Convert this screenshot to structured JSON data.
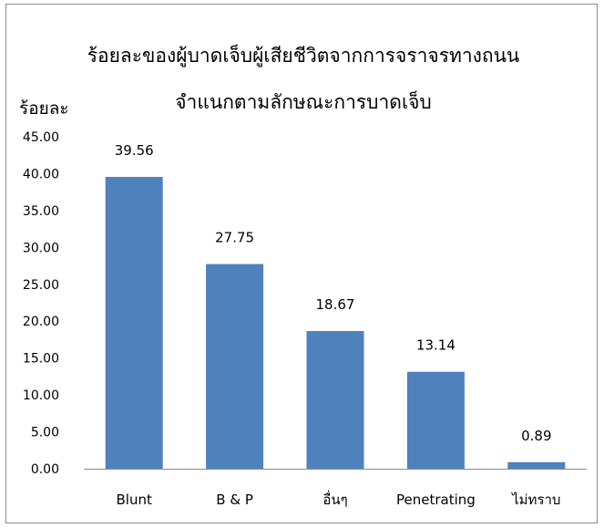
{
  "chart_data": {
    "type": "bar",
    "title": [
      "ร้อยละของผู้บาดเจ็บผู้เสียชีวิตจากการจราจรทางถนน",
      "จำแนกตามลักษณะการบาดเจ็บ"
    ],
    "ylabel": "ร้อยละ",
    "xlabel": "",
    "categories": [
      "Blunt",
      "B & P",
      "อื่นๆ",
      "Penetrating",
      "ไม่ทราบ"
    ],
    "values": [
      39.56,
      27.75,
      18.67,
      13.14,
      0.89
    ],
    "data_labels": [
      "39.56",
      "27.75",
      "18.67",
      "13.14",
      "0.89"
    ],
    "ylim": [
      0,
      45
    ],
    "yticks": [
      "0.00",
      "5.00",
      "10.00",
      "15.00",
      "20.00",
      "25.00",
      "30.00",
      "35.00",
      "40.00",
      "45.00"
    ],
    "grid": false,
    "legend": "none",
    "bar_color": "#4f81bd"
  }
}
